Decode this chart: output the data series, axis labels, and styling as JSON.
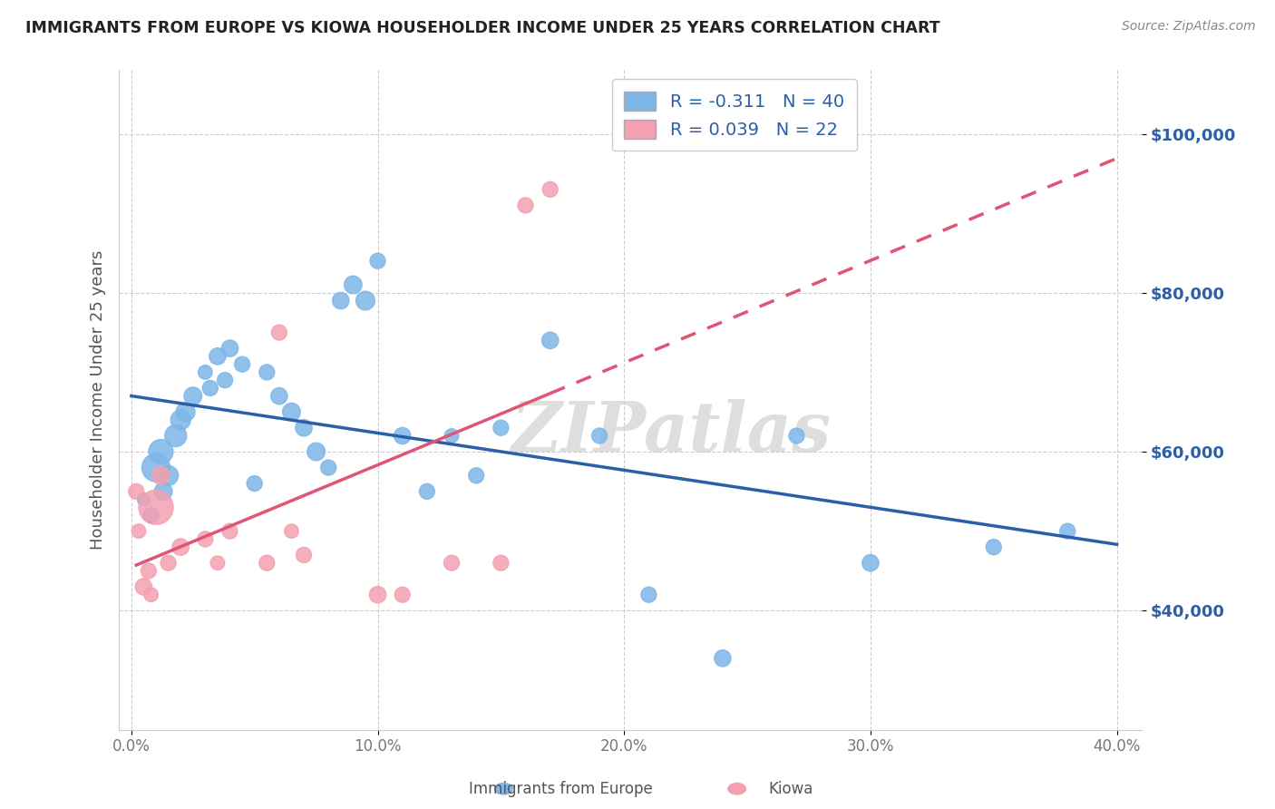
{
  "title": "IMMIGRANTS FROM EUROPE VS KIOWA HOUSEHOLDER INCOME UNDER 25 YEARS CORRELATION CHART",
  "source": "Source: ZipAtlas.com",
  "ylabel": "Householder Income Under 25 years",
  "xlim": [
    -0.5,
    41.0
  ],
  "ylim": [
    25000,
    108000
  ],
  "yticks": [
    40000,
    60000,
    80000,
    100000
  ],
  "ytick_labels": [
    "$40,000",
    "$60,000",
    "$80,000",
    "$100,000"
  ],
  "legend_blue_r": "R = -0.311",
  "legend_blue_n": "N = 40",
  "legend_pink_r": "R = 0.039",
  "legend_pink_n": "N = 22",
  "legend_blue_label": "Immigrants from Europe",
  "legend_pink_label": "Kiowa",
  "blue_color": "#7EB6E8",
  "pink_color": "#F4A0B0",
  "blue_line_color": "#2C5FA8",
  "pink_line_color": "#E05575",
  "watermark": "ZIPatlas",
  "blue_x": [
    0.5,
    0.8,
    1.0,
    1.2,
    1.3,
    1.5,
    1.8,
    2.0,
    2.2,
    2.5,
    3.0,
    3.2,
    3.5,
    3.8,
    4.0,
    4.5,
    5.0,
    5.5,
    6.0,
    6.5,
    7.0,
    7.5,
    8.0,
    8.5,
    9.0,
    9.5,
    10.0,
    11.0,
    12.0,
    13.0,
    14.0,
    15.0,
    17.0,
    19.0,
    21.0,
    24.0,
    27.0,
    30.0,
    35.0,
    38.0
  ],
  "blue_y": [
    54000,
    52000,
    58000,
    60000,
    55000,
    57000,
    62000,
    64000,
    65000,
    67000,
    70000,
    68000,
    72000,
    69000,
    73000,
    71000,
    56000,
    70000,
    67000,
    65000,
    63000,
    60000,
    58000,
    79000,
    81000,
    79000,
    84000,
    62000,
    55000,
    62000,
    57000,
    63000,
    74000,
    62000,
    42000,
    34000,
    62000,
    46000,
    48000,
    50000
  ],
  "blue_sizes": [
    40,
    60,
    200,
    150,
    80,
    100,
    120,
    100,
    90,
    80,
    50,
    60,
    70,
    60,
    70,
    60,
    60,
    60,
    70,
    80,
    70,
    80,
    60,
    70,
    80,
    90,
    60,
    70,
    60,
    50,
    60,
    60,
    70,
    60,
    60,
    70,
    60,
    70,
    60,
    60
  ],
  "pink_x": [
    0.2,
    0.3,
    0.5,
    0.7,
    0.8,
    1.0,
    1.2,
    1.5,
    2.0,
    3.0,
    3.5,
    4.0,
    5.5,
    6.0,
    6.5,
    7.0,
    10.0,
    11.0,
    13.0,
    15.0,
    16.0,
    17.0
  ],
  "pink_y": [
    55000,
    50000,
    43000,
    45000,
    42000,
    53000,
    57000,
    46000,
    48000,
    49000,
    46000,
    50000,
    46000,
    75000,
    50000,
    47000,
    42000,
    42000,
    46000,
    46000,
    91000,
    93000
  ],
  "pink_sizes": [
    60,
    50,
    70,
    60,
    50,
    300,
    80,
    60,
    70,
    60,
    50,
    60,
    60,
    60,
    50,
    60,
    70,
    60,
    60,
    60,
    60,
    60
  ]
}
